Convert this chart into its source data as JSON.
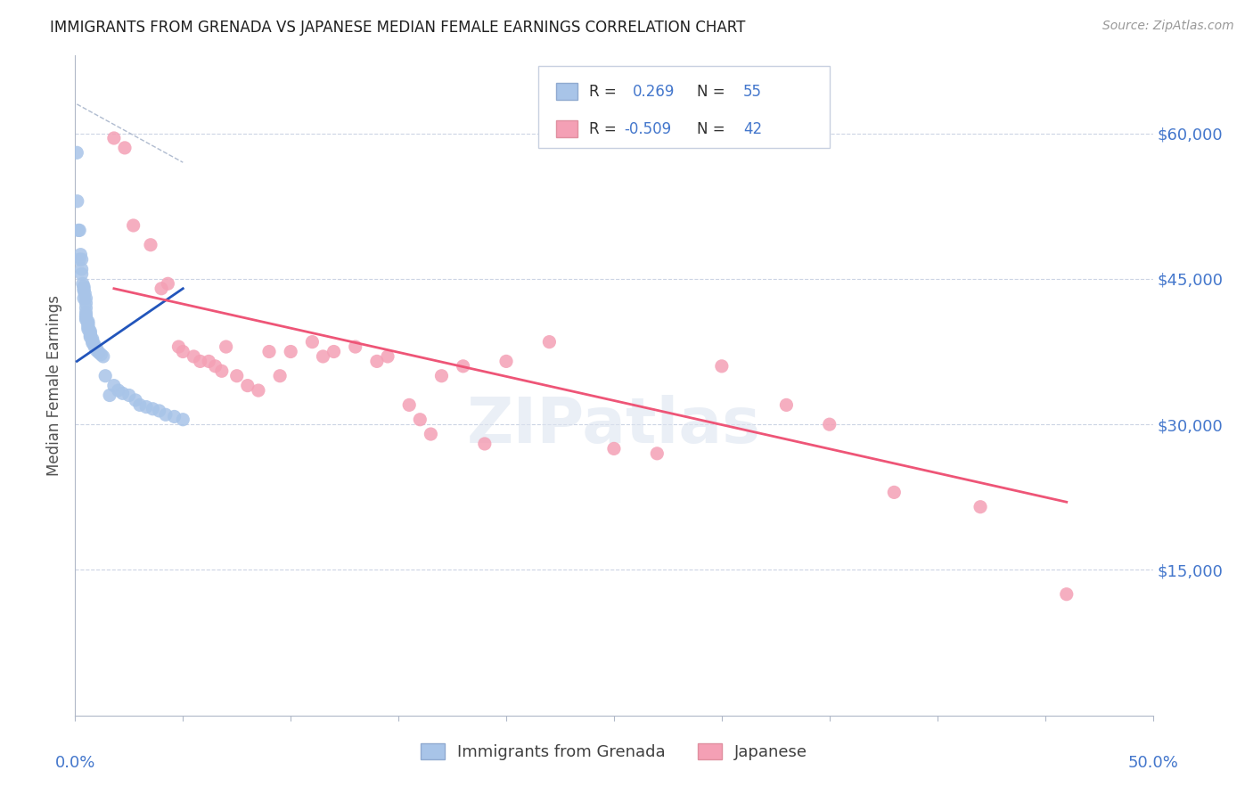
{
  "title": "IMMIGRANTS FROM GRENADA VS JAPANESE MEDIAN FEMALE EARNINGS CORRELATION CHART",
  "source_text": "Source: ZipAtlas.com",
  "ylabel": "Median Female Earnings",
  "ytick_labels": [
    "$15,000",
    "$30,000",
    "$45,000",
    "$60,000"
  ],
  "ytick_values": [
    15000,
    30000,
    45000,
    60000
  ],
  "ymin": 0,
  "ymax": 68000,
  "xmin": 0.0,
  "xmax": 0.5,
  "legend_label1": "Immigrants from Grenada",
  "legend_label2": "Japanese",
  "color_blue": "#a8c4e8",
  "color_pink": "#f4a0b5",
  "color_blue_line": "#2255bb",
  "color_pink_line": "#ee5577",
  "color_dashed": "#b0bcd0",
  "color_title": "#202020",
  "color_axis_values": "#4477cc",
  "color_ylabel": "#505050",
  "background_color": "#ffffff",
  "watermark_text": "ZIPatlas",
  "blue_dots_x": [
    0.0008,
    0.001,
    0.0015,
    0.002,
    0.002,
    0.0025,
    0.003,
    0.003,
    0.003,
    0.0035,
    0.004,
    0.004,
    0.004,
    0.004,
    0.0045,
    0.005,
    0.005,
    0.005,
    0.005,
    0.005,
    0.005,
    0.005,
    0.006,
    0.006,
    0.006,
    0.006,
    0.006,
    0.007,
    0.007,
    0.007,
    0.007,
    0.008,
    0.008,
    0.008,
    0.009,
    0.009,
    0.01,
    0.01,
    0.011,
    0.012,
    0.013,
    0.014,
    0.016,
    0.018,
    0.02,
    0.022,
    0.025,
    0.028,
    0.03,
    0.033,
    0.036,
    0.039,
    0.042,
    0.046,
    0.05
  ],
  "blue_dots_y": [
    58000,
    53000,
    50000,
    50000,
    47000,
    47500,
    47000,
    46000,
    45500,
    44500,
    44200,
    44000,
    43800,
    43000,
    43500,
    43000,
    42500,
    42000,
    41500,
    41200,
    41000,
    40800,
    40600,
    40400,
    40200,
    40000,
    39800,
    39600,
    39400,
    39200,
    39000,
    38800,
    38600,
    38400,
    38200,
    38000,
    37800,
    37600,
    37400,
    37200,
    37000,
    35000,
    33000,
    34000,
    33500,
    33200,
    33000,
    32500,
    32000,
    31800,
    31600,
    31400,
    31000,
    30800,
    30500
  ],
  "pink_dots_x": [
    0.018,
    0.023,
    0.027,
    0.035,
    0.04,
    0.043,
    0.048,
    0.05,
    0.055,
    0.058,
    0.062,
    0.065,
    0.068,
    0.07,
    0.075,
    0.08,
    0.085,
    0.09,
    0.095,
    0.1,
    0.11,
    0.115,
    0.12,
    0.13,
    0.14,
    0.145,
    0.155,
    0.16,
    0.165,
    0.17,
    0.18,
    0.19,
    0.2,
    0.22,
    0.25,
    0.27,
    0.3,
    0.33,
    0.35,
    0.38,
    0.42,
    0.46
  ],
  "pink_dots_y": [
    59500,
    58500,
    50500,
    48500,
    44000,
    44500,
    38000,
    37500,
    37000,
    36500,
    36500,
    36000,
    35500,
    38000,
    35000,
    34000,
    33500,
    37500,
    35000,
    37500,
    38500,
    37000,
    37500,
    38000,
    36500,
    37000,
    32000,
    30500,
    29000,
    35000,
    36000,
    28000,
    36500,
    38500,
    27500,
    27000,
    36000,
    32000,
    30000,
    23000,
    21500,
    12500
  ],
  "blue_line_x": [
    0.0008,
    0.05
  ],
  "blue_line_y": [
    36500,
    44000
  ],
  "pink_line_x": [
    0.018,
    0.46
  ],
  "pink_line_y": [
    44000,
    22000
  ],
  "dashed_line_x": [
    0.0008,
    0.05
  ],
  "dashed_line_y": [
    63000,
    57000
  ]
}
